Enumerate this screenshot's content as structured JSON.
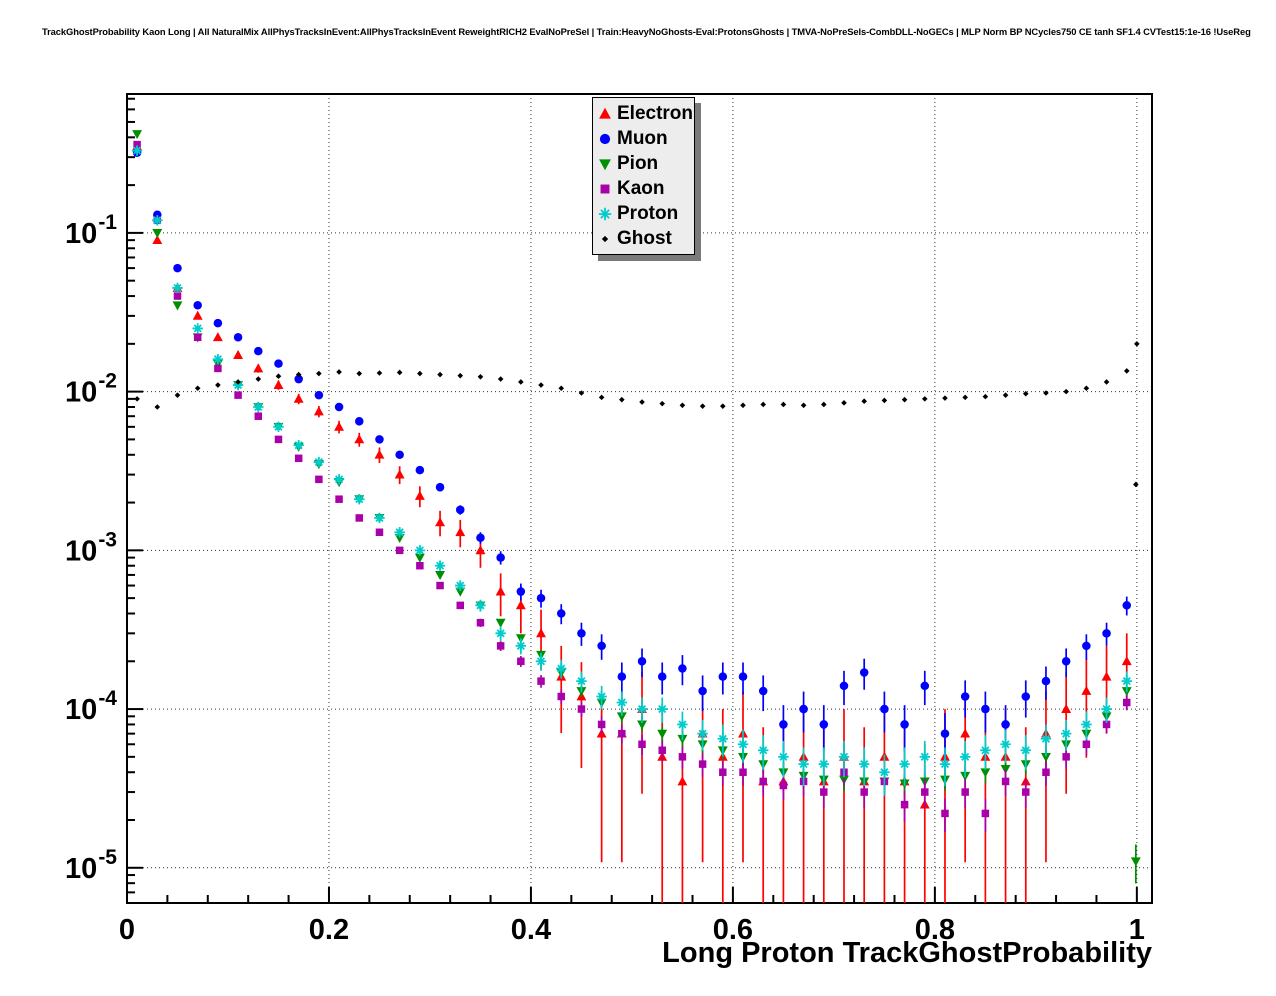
{
  "chart_data": {
    "type": "scatter",
    "title": "TrackGhostProbability Kaon Long | All NaturalMix AllPhysTracksInEvent:AllPhysTracksInEvent ReweightRICH2 EvalNoPreSel | Train:HeavyNoGhosts-Eval:ProtonsGhosts | TMVA-NoPreSels-CombDLL-NoGECs | MLP Norm BP NCycles750 CE tanh SF1.4 CVTest15:1e-16 !UseReg",
    "xlabel": "Long Proton TrackGhostProbability",
    "ylabel": "",
    "ylog": true,
    "grid": true,
    "legend_position": "top-center",
    "xlim": [
      0,
      1.015
    ],
    "ylim": [
      6e-06,
      0.75
    ],
    "xticks": [
      0,
      0.2,
      0.4,
      0.6,
      0.8,
      1
    ],
    "xtick_labels": [
      "0",
      "0.2",
      "0.4",
      "0.6",
      "0.8",
      "1"
    ],
    "ytick_values": [
      0.1,
      0.01,
      0.001,
      0.0001,
      1e-05
    ],
    "ytick_exponents": [
      "-1",
      "-2",
      "-3",
      "-4",
      "-5"
    ],
    "x": [
      0.01,
      0.03,
      0.05,
      0.07,
      0.09,
      0.11,
      0.13,
      0.15,
      0.17,
      0.19,
      0.21,
      0.23,
      0.25,
      0.27,
      0.29,
      0.31,
      0.33,
      0.35,
      0.37,
      0.39,
      0.41,
      0.43,
      0.45,
      0.47,
      0.49,
      0.51,
      0.53,
      0.55,
      0.57,
      0.59,
      0.61,
      0.63,
      0.65,
      0.67,
      0.69,
      0.71,
      0.73,
      0.75,
      0.77,
      0.79,
      0.81,
      0.83,
      0.85,
      0.87,
      0.89,
      0.91,
      0.93,
      0.95,
      0.97,
      0.99
    ],
    "series": [
      {
        "name": "Electron",
        "color": "#ff0000",
        "marker": "triangle-up",
        "n_scale": 20000.0,
        "y": [
          0.35,
          0.09,
          0.045,
          0.03,
          0.022,
          0.017,
          0.014,
          0.011,
          0.009,
          0.0075,
          0.006,
          0.005,
          0.004,
          0.003,
          0.0022,
          0.0015,
          0.0013,
          0.001,
          0.00055,
          0.00045,
          0.0003,
          0.00016,
          0.00012,
          7e-05,
          7e-05,
          0.0001,
          5e-05,
          3.5e-05,
          7e-05,
          5e-05,
          7e-05,
          3.5e-05,
          3.5e-05,
          5e-05,
          3.5e-05,
          5e-05,
          3.5e-05,
          5e-05,
          3.5e-05,
          2.5e-05,
          5e-05,
          7e-05,
          5e-05,
          5e-05,
          3.5e-05,
          7e-05,
          0.0001,
          0.00013,
          0.00016,
          0.0002
        ],
        "extra": []
      },
      {
        "name": "Muon",
        "color": "#0000ff",
        "marker": "circle",
        "n_scale": 120000.0,
        "y": [
          0.32,
          0.13,
          0.06,
          0.035,
          0.027,
          0.022,
          0.018,
          0.015,
          0.012,
          0.0095,
          0.008,
          0.0065,
          0.005,
          0.004,
          0.0032,
          0.0025,
          0.0018,
          0.0012,
          0.0009,
          0.00055,
          0.0005,
          0.0004,
          0.0003,
          0.00025,
          0.00016,
          0.0002,
          0.00016,
          0.00018,
          0.00013,
          0.00016,
          0.00016,
          0.00013,
          8e-05,
          0.0001,
          8e-05,
          0.00014,
          0.00017,
          0.0001,
          8e-05,
          0.00014,
          7e-05,
          0.00012,
          0.0001,
          8e-05,
          0.00012,
          0.00015,
          0.0002,
          0.00025,
          0.0003,
          0.00045
        ],
        "extra": []
      },
      {
        "name": "Pion",
        "color": "#008f00",
        "marker": "triangle-down",
        "n_scale": 1200000.0,
        "y": [
          0.42,
          0.1,
          0.035,
          0.022,
          0.015,
          0.011,
          0.008,
          0.006,
          0.0045,
          0.0035,
          0.0027,
          0.0021,
          0.0016,
          0.0012,
          0.0009,
          0.0007,
          0.00055,
          0.00045,
          0.00035,
          0.00028,
          0.00022,
          0.00017,
          0.00013,
          0.00011,
          9e-05,
          8e-05,
          7e-05,
          6.5e-05,
          6e-05,
          5.5e-05,
          5e-05,
          4.5e-05,
          4e-05,
          3.8e-05,
          3.6e-05,
          3.6e-05,
          3.5e-05,
          3.5e-05,
          3.4e-05,
          3.5e-05,
          3.6e-05,
          3.8e-05,
          4e-05,
          4.2e-05,
          4.5e-05,
          5e-05,
          6e-05,
          7e-05,
          9e-05,
          0.00013
        ],
        "extra": [
          [
            0.999,
            1.1e-05
          ]
        ]
      },
      {
        "name": "Kaon",
        "color": "#aa00aa",
        "marker": "square",
        "n_scale": 800000.0,
        "y": [
          0.36,
          0.12,
          0.04,
          0.022,
          0.014,
          0.0095,
          0.007,
          0.005,
          0.0038,
          0.0028,
          0.0021,
          0.0016,
          0.0013,
          0.001,
          0.0008,
          0.0006,
          0.00045,
          0.00035,
          0.00025,
          0.0002,
          0.00015,
          0.00012,
          0.0001,
          8e-05,
          7e-05,
          6e-05,
          5.5e-05,
          5e-05,
          4.5e-05,
          4e-05,
          4e-05,
          3.5e-05,
          3.3e-05,
          3.5e-05,
          3e-05,
          4e-05,
          3e-05,
          3.5e-05,
          2.5e-05,
          3e-05,
          2.2e-05,
          3e-05,
          2.2e-05,
          3.5e-05,
          3e-05,
          4e-05,
          5e-05,
          6e-05,
          8e-05,
          0.00011
        ],
        "extra": []
      },
      {
        "name": "Proton",
        "color": "#00cccc",
        "marker": "star",
        "n_scale": 300000.0,
        "y": [
          0.33,
          0.12,
          0.045,
          0.025,
          0.016,
          0.011,
          0.008,
          0.006,
          0.0046,
          0.0036,
          0.0028,
          0.0021,
          0.0016,
          0.0013,
          0.001,
          0.0008,
          0.0006,
          0.00045,
          0.0003,
          0.00025,
          0.0002,
          0.00018,
          0.00015,
          0.00012,
          0.00011,
          0.0001,
          0.0001,
          8e-05,
          7e-05,
          6.5e-05,
          6e-05,
          5.5e-05,
          5e-05,
          4.5e-05,
          4.5e-05,
          5e-05,
          4.5e-05,
          4e-05,
          4.5e-05,
          5e-05,
          4.5e-05,
          5e-05,
          5.5e-05,
          6e-05,
          5.5e-05,
          6.5e-05,
          7e-05,
          8e-05,
          0.0001,
          0.00015
        ],
        "extra": []
      },
      {
        "name": "Ghost",
        "color": "#000000",
        "marker": "diamond",
        "n_scale": 3000000.0,
        "y": [
          0.009,
          0.008,
          0.0095,
          0.0105,
          0.011,
          0.0115,
          0.012,
          0.0125,
          0.0128,
          0.013,
          0.0133,
          0.013,
          0.0131,
          0.0132,
          0.013,
          0.0128,
          0.0126,
          0.0124,
          0.012,
          0.0115,
          0.011,
          0.0105,
          0.0098,
          0.0092,
          0.0089,
          0.0086,
          0.0084,
          0.0082,
          0.0081,
          0.0081,
          0.0082,
          0.0083,
          0.0083,
          0.0082,
          0.0083,
          0.0085,
          0.0087,
          0.0088,
          0.0089,
          0.009,
          0.0091,
          0.0092,
          0.0093,
          0.0095,
          0.0097,
          0.0098,
          0.01,
          0.0105,
          0.0115,
          0.0135
        ],
        "extra": [
          [
            1.0,
            0.02
          ],
          [
            0.999,
            0.0026
          ]
        ]
      }
    ]
  }
}
